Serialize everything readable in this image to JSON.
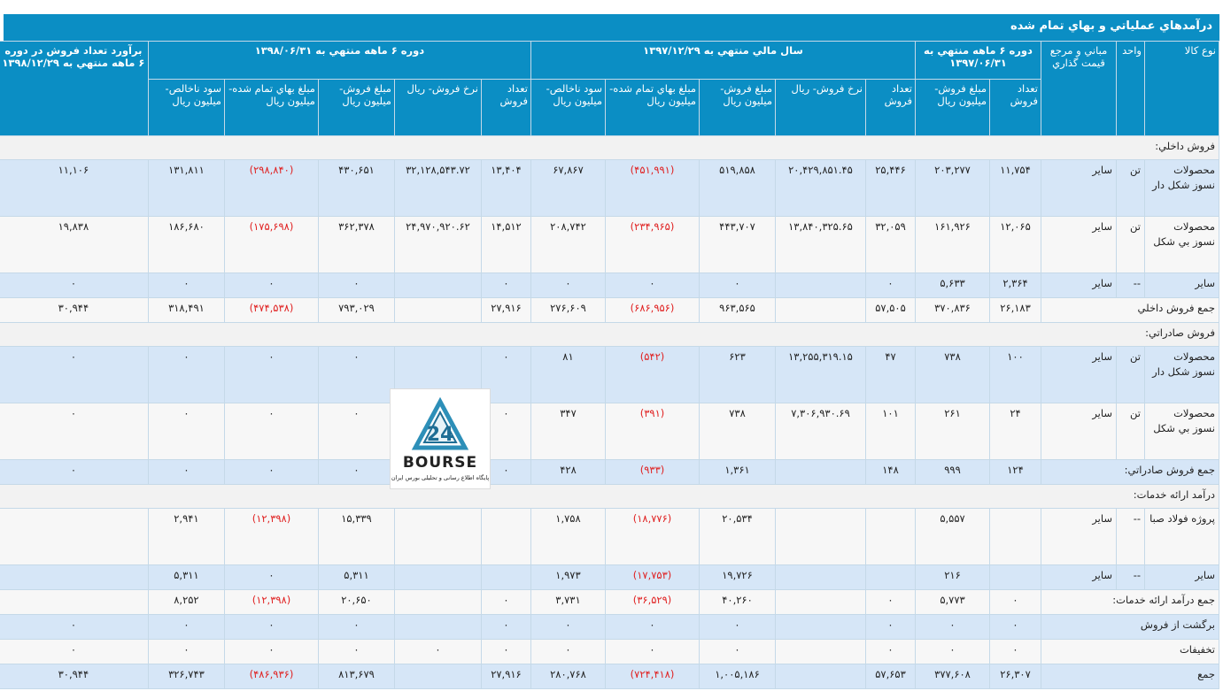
{
  "title": "درآمدهاي عملياتي و بهاي تمام شده",
  "headers": {
    "product_type": "نوع كالا",
    "unit": "واحد",
    "pricing_basis": "مباني و مرجع قيمت گذاري",
    "period1": "دوره ۶ ماهه منتهي به ۱۳۹۷/۰۶/۳۱",
    "period2": "سال مالي منتهي به ۱۳۹۷/۱۲/۲۹",
    "period3": "دوره ۶ ماهه منتهي به ۱۳۹۸/۰۶/۳۱",
    "estimate": "برآورد تعداد فروش در دوره ۶ ماهه منتهي به ۱۳۹۸/۱۲/۲۹",
    "p1": [
      "تعداد فروش",
      "مبلغ فروش- ميليون ريال"
    ],
    "p2": [
      "تعداد فروش",
      "نرخ فروش- ريال",
      "مبلغ فروش- ميليون ريال",
      "مبلغ بهاي تمام شده- ميليون ريال",
      "سود ناخالص- ميليون ريال"
    ],
    "p3": [
      "تعداد فروش",
      "نرخ فروش- ريال",
      "مبلغ فروش- ميليون ريال",
      "مبلغ بهاي تمام شده- ميليون ريال",
      "سود ناخالص- ميليون ريال"
    ]
  },
  "rows": [
    {
      "kind": "section",
      "label": "فروش داخلي:"
    },
    {
      "kind": "item",
      "shade": "blue",
      "height": "tall",
      "product": "محصولات نسوز شكل دار",
      "unit": "تن",
      "basis": "ساير",
      "cells": [
        "۱۱,۷۵۴",
        "۲۰۳,۲۷۷",
        "۲۵,۴۴۶",
        "۲۰,۴۲۹,۸۵۱.۴۵",
        "۵۱۹,۸۵۸",
        "(۴۵۱,۹۹۱)",
        "۶۷,۸۶۷",
        "۱۳,۴۰۴",
        "۳۲,۱۲۸,۵۴۳.۷۲",
        "۴۳۰,۶۵۱",
        "(۲۹۸,۸۴۰)",
        "۱۳۱,۸۱۱",
        "۱۱,۱۰۶"
      ]
    },
    {
      "kind": "item",
      "shade": "white",
      "height": "tall",
      "product": "محصولات نسوز بي شكل",
      "unit": "تن",
      "basis": "ساير",
      "cells": [
        "۱۲,۰۶۵",
        "۱۶۱,۹۲۶",
        "۳۲,۰۵۹",
        "۱۳,۸۴۰,۳۲۵.۶۵",
        "۴۴۳,۷۰۷",
        "(۲۳۴,۹۶۵)",
        "۲۰۸,۷۴۲",
        "۱۴,۵۱۲",
        "۲۴,۹۷۰,۹۲۰.۶۲",
        "۳۶۲,۳۷۸",
        "(۱۷۵,۶۹۸)",
        "۱۸۶,۶۸۰",
        "۱۹,۸۳۸"
      ]
    },
    {
      "kind": "item",
      "shade": "blue",
      "height": "mid",
      "product": "ساير",
      "unit": "--",
      "basis": "ساير",
      "cells": [
        "۲,۳۶۴",
        "۵,۶۳۳",
        "۰",
        "",
        "۰",
        "۰",
        "۰",
        "۰",
        "",
        "۰",
        "۰",
        "۰",
        "۰"
      ]
    },
    {
      "kind": "total",
      "shade": "white",
      "height": "mid",
      "label": "جمع فروش داخلي",
      "cells": [
        "۲۶,۱۸۳",
        "۳۷۰,۸۳۶",
        "۵۷,۵۰۵",
        "",
        "۹۶۳,۵۶۵",
        "(۶۸۶,۹۵۶)",
        "۲۷۶,۶۰۹",
        "۲۷,۹۱۶",
        "",
        "۷۹۳,۰۲۹",
        "(۴۷۴,۵۳۸)",
        "۳۱۸,۴۹۱",
        "۳۰,۹۴۴"
      ]
    },
    {
      "kind": "section",
      "label": "فروش صادراتي:"
    },
    {
      "kind": "item",
      "shade": "blue",
      "height": "tall",
      "product": "محصولات نسوز شكل دار",
      "unit": "تن",
      "basis": "ساير",
      "cells": [
        "۱۰۰",
        "۷۳۸",
        "۴۷",
        "۱۳,۲۵۵,۳۱۹.۱۵",
        "۶۲۳",
        "(۵۴۲)",
        "۸۱",
        "۰",
        "",
        "۰",
        "۰",
        "۰",
        "۰"
      ]
    },
    {
      "kind": "item",
      "shade": "white",
      "height": "tall",
      "product": "محصولات نسوز بي شكل",
      "unit": "تن",
      "basis": "ساير",
      "cells": [
        "۲۴",
        "۲۶۱",
        "۱۰۱",
        "۷,۳۰۶,۹۳۰.۶۹",
        "۷۳۸",
        "(۳۹۱)",
        "۳۴۷",
        "۰",
        "",
        "۰",
        "۰",
        "۰",
        "۰"
      ]
    },
    {
      "kind": "total",
      "shade": "blue",
      "height": "mid",
      "label": "جمع فروش صادراتي:",
      "cells": [
        "۱۲۴",
        "۹۹۹",
        "۱۴۸",
        "",
        "۱,۳۶۱",
        "(۹۳۳)",
        "۴۲۸",
        "۰",
        "",
        "۰",
        "۰",
        "۰",
        "۰"
      ]
    },
    {
      "kind": "section",
      "label": "درآمد ارائه خدمات:"
    },
    {
      "kind": "item",
      "shade": "white",
      "height": "tall2",
      "product": "پروژه فولاد صبا",
      "unit": "--",
      "basis": "ساير",
      "cells": [
        "",
        "۵,۵۵۷",
        "",
        "",
        "۲۰,۵۳۴",
        "(۱۸,۷۷۶)",
        "۱,۷۵۸",
        "",
        "",
        "۱۵,۳۳۹",
        "(۱۲,۳۹۸)",
        "۲,۹۴۱",
        ""
      ]
    },
    {
      "kind": "item",
      "shade": "blue",
      "height": "mid",
      "product": "ساير",
      "unit": "--",
      "basis": "ساير",
      "cells": [
        "",
        "۲۱۶",
        "",
        "",
        "۱۹,۷۲۶",
        "(۱۷,۷۵۳)",
        "۱,۹۷۳",
        "",
        "",
        "۵,۳۱۱",
        "۰",
        "۵,۳۱۱",
        ""
      ]
    },
    {
      "kind": "total",
      "shade": "white",
      "height": "mid",
      "label": "جمع درآمد ارائه خدمات:",
      "cells": [
        "۰",
        "۵,۷۷۳",
        "۰",
        "",
        "۴۰,۲۶۰",
        "(۳۶,۵۲۹)",
        "۳,۷۳۱",
        "۰",
        "",
        "۲۰,۶۵۰",
        "(۱۲,۳۹۸)",
        "۸,۲۵۲",
        ""
      ]
    },
    {
      "kind": "total",
      "shade": "blue",
      "height": "mid",
      "label": "برگشت از فروش",
      "cells": [
        "۰",
        "۰",
        "۰",
        "",
        "۰",
        "۰",
        "۰",
        "۰",
        "",
        "۰",
        "۰",
        "۰",
        "۰"
      ]
    },
    {
      "kind": "total",
      "shade": "white",
      "height": "mid",
      "label": "تخفيفات",
      "cells": [
        "۰",
        "۰",
        "۰",
        "",
        "۰",
        "۰",
        "۰",
        "۰",
        "۰",
        "۰",
        "۰",
        "۰",
        "۰"
      ]
    },
    {
      "kind": "total",
      "shade": "blue",
      "height": "mid",
      "label": "جمع",
      "cells": [
        "۲۶,۳۰۷",
        "۳۷۷,۶۰۸",
        "۵۷,۶۵۳",
        "",
        "۱,۰۰۵,۱۸۶",
        "(۷۲۴,۴۱۸)",
        "۲۸۰,۷۶۸",
        "۲۷,۹۱۶",
        "",
        "۸۱۳,۶۷۹",
        "(۴۸۶,۹۳۶)",
        "۳۲۶,۷۴۳",
        "۳۰,۹۴۴"
      ]
    }
  ],
  "logo": {
    "text": "BOURSE",
    "caption": "پایگاه اطلاع رسانی و تحلیلی بورس ایران",
    "mark": "24"
  },
  "colors": {
    "header": "#0b8ec4",
    "row_blue": "#d6e6f7",
    "row_white": "#f7f7f7",
    "negative": "#e02020"
  }
}
